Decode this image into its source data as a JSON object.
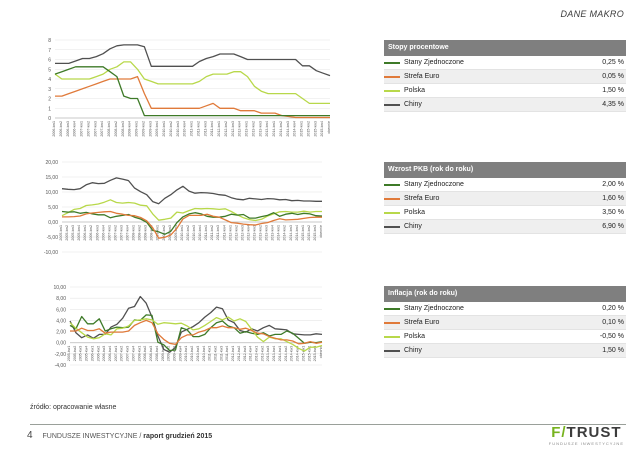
{
  "header": {
    "title": "DANE MAKRO"
  },
  "colors": {
    "us": "#3e7a28",
    "eu": "#e07a3a",
    "pl": "#b8d84a",
    "cn": "#505050"
  },
  "charts": [
    {
      "id": "rates",
      "yticks": [
        "0",
        "1",
        "2",
        "3",
        "4",
        "5",
        "6",
        "7",
        "8"
      ],
      "ymin": 0,
      "ymax": 8,
      "xlabels": [
        "2006-kw1",
        "2006-kw2",
        "2006-kw3",
        "2006-kw4",
        "2007-kw1",
        "2007-kw2",
        "2007-kw3",
        "2007-kw4",
        "2008-kw1",
        "2008-kw2",
        "2008-kw3",
        "2008-kw4",
        "2009-kw1",
        "2009-kw2",
        "2009-kw3",
        "2009-kw4",
        "2010-kw1",
        "2010-kw2",
        "2010-kw3",
        "2010-kw4",
        "2011-kw1",
        "2011-kw2",
        "2011-kw3",
        "2011-kw4",
        "2012-kw1",
        "2012-kw2",
        "2012-kw3",
        "2012-kw4",
        "2013-kw1",
        "2013-kw2",
        "2013-kw3",
        "2013-kw4",
        "2014-kw1",
        "2014-kw2",
        "2014-kw3",
        "2014-kw4",
        "2015-kw1",
        "2015-kw2",
        "2015-kw3",
        "2015-kw4",
        "obecnie"
      ],
      "series": [
        {
          "key": "cn",
          "values": [
            5.6,
            5.6,
            5.6,
            5.85,
            6.1,
            6.1,
            6.3,
            6.6,
            7.1,
            7.4,
            7.5,
            7.5,
            7.5,
            7.3,
            5.3,
            5.3,
            5.3,
            5.3,
            5.3,
            5.3,
            5.3,
            5.8,
            6.1,
            6.3,
            6.56,
            6.56,
            6.56,
            6.3,
            6.0,
            6.0,
            6.0,
            6.0,
            6.0,
            6.0,
            6.0,
            6.0,
            5.35,
            5.35,
            4.85,
            4.6,
            4.35
          ]
        },
        {
          "key": "pl",
          "values": [
            4.5,
            4.0,
            4.0,
            4.0,
            4.0,
            4.0,
            4.25,
            4.5,
            5.0,
            5.25,
            5.75,
            5.75,
            5.0,
            4.0,
            3.75,
            3.5,
            3.5,
            3.5,
            3.5,
            3.5,
            3.5,
            3.75,
            4.25,
            4.5,
            4.5,
            4.5,
            4.75,
            4.75,
            4.25,
            3.25,
            2.75,
            2.5,
            2.5,
            2.5,
            2.5,
            2.5,
            2.0,
            1.5,
            1.5,
            1.5,
            1.5
          ]
        },
        {
          "key": "eu",
          "values": [
            2.25,
            2.25,
            2.5,
            2.75,
            3.0,
            3.25,
            3.5,
            3.75,
            4.0,
            4.0,
            4.0,
            4.0,
            4.25,
            2.5,
            1.0,
            1.0,
            1.0,
            1.0,
            1.0,
            1.0,
            1.0,
            1.0,
            1.25,
            1.5,
            1.0,
            1.0,
            1.0,
            0.75,
            0.75,
            0.75,
            0.5,
            0.5,
            0.5,
            0.25,
            0.15,
            0.05,
            0.05,
            0.05,
            0.05,
            0.05,
            0.05
          ]
        },
        {
          "key": "us",
          "values": [
            4.5,
            4.75,
            5.0,
            5.25,
            5.25,
            5.25,
            5.25,
            5.25,
            4.75,
            4.25,
            2.25,
            2.0,
            2.0,
            0.25,
            0.25,
            0.25,
            0.25,
            0.25,
            0.25,
            0.25,
            0.25,
            0.25,
            0.25,
            0.25,
            0.25,
            0.25,
            0.25,
            0.25,
            0.25,
            0.25,
            0.25,
            0.25,
            0.25,
            0.25,
            0.25,
            0.25,
            0.25,
            0.25,
            0.25,
            0.25,
            0.25
          ]
        }
      ],
      "legend": {
        "title": "Stopy procentowe",
        "rows": [
          {
            "key": "us",
            "name": "Stany Zjednoczone",
            "value": "0,25 %"
          },
          {
            "key": "eu",
            "name": "Strefa Euro",
            "value": "0,05 %"
          },
          {
            "key": "pl",
            "name": "Polska",
            "value": "1,50 %"
          },
          {
            "key": "cn",
            "name": "Chiny",
            "value": "4,35 %"
          }
        ]
      }
    },
    {
      "id": "gdp",
      "yticks": [
        "-10,00",
        "-5,00",
        "0,00",
        "5,00",
        "10,00",
        "15,00",
        "20,00"
      ],
      "ymin": -10,
      "ymax": 20,
      "xlabels": [
        "2005-kw1",
        "2005-kw2",
        "2005-kw3",
        "2005-kw4",
        "2006-kw1",
        "2006-kw2",
        "2006-kw3",
        "2006-kw4",
        "2007-kw1",
        "2007-kw2",
        "2007-kw3",
        "2007-kw4",
        "2008-kw1",
        "2008-kw2",
        "2008-kw3",
        "2008-kw4",
        "2009-kw1",
        "2009-kw2",
        "2009-kw3",
        "2009-kw4",
        "2010-kw1",
        "2010-kw2",
        "2010-kw3",
        "2010-kw4",
        "2011-kw1",
        "2011-kw2",
        "2011-kw3",
        "2011-kw4",
        "2012-kw1",
        "2012-kw2",
        "2012-kw3",
        "2012-kw4",
        "2013-kw1",
        "2013-kw2",
        "2013-kw3",
        "2013-kw4",
        "2014-kw1",
        "2014-kw2",
        "2014-kw3",
        "2014-kw4",
        "2015-kw1",
        "2015-kw2",
        "2015-kw3",
        "obecnie"
      ],
      "series": [
        {
          "key": "cn",
          "values": [
            11.1,
            10.9,
            10.8,
            11.1,
            12.4,
            13.1,
            12.8,
            12.9,
            13.9,
            14.7,
            14.3,
            13.8,
            11.3,
            10.1,
            9.1,
            6.8,
            6.1,
            7.9,
            9.1,
            10.7,
            11.9,
            10.3,
            9.6,
            9.8,
            9.7,
            9.5,
            9.1,
            8.9,
            8.1,
            7.6,
            7.4,
            7.9,
            7.7,
            7.5,
            7.8,
            7.7,
            7.4,
            7.5,
            7.1,
            7.2,
            7.0,
            7.0,
            6.9,
            6.9
          ]
        },
        {
          "key": "pl",
          "values": [
            2.1,
            3.1,
            4.2,
            4.5,
            5.5,
            5.7,
            6.0,
            6.6,
            7.4,
            6.5,
            6.3,
            6.5,
            6.3,
            5.6,
            5.4,
            2.7,
            0.6,
            0.9,
            1.3,
            3.3,
            3.0,
            3.8,
            4.5,
            4.4,
            4.5,
            4.4,
            4.2,
            4.4,
            3.5,
            2.4,
            1.4,
            0.8,
            0.5,
            0.9,
            2.0,
            2.7,
            3.4,
            3.5,
            3.3,
            3.3,
            3.6,
            3.3,
            3.5,
            3.5
          ]
        },
        {
          "key": "us",
          "values": [
            3.5,
            3.3,
            3.4,
            2.9,
            3.2,
            2.7,
            2.4,
            2.4,
            1.4,
            1.9,
            2.2,
            2.5,
            1.6,
            1.0,
            -0.1,
            -2.8,
            -3.3,
            -4.1,
            -3.1,
            -0.2,
            1.7,
            2.7,
            3.1,
            2.7,
            1.9,
            1.6,
            1.6,
            1.9,
            2.6,
            2.3,
            2.5,
            1.3,
            1.3,
            1.8,
            2.2,
            3.1,
            1.9,
            2.6,
            2.9,
            2.5,
            2.9,
            2.7,
            2.1,
            2.0
          ]
        },
        {
          "key": "eu",
          "values": [
            1.7,
            1.7,
            1.8,
            2.0,
            2.7,
            3.0,
            3.2,
            3.4,
            3.5,
            2.9,
            2.6,
            2.2,
            2.1,
            1.5,
            0.4,
            -1.9,
            -5.4,
            -5.1,
            -4.3,
            -2.1,
            1.0,
            2.2,
            2.2,
            2.2,
            2.6,
            1.9,
            1.6,
            0.7,
            -0.2,
            -0.4,
            -0.7,
            -0.9,
            -1.0,
            -0.5,
            -0.2,
            0.5,
            1.1,
            0.7,
            0.8,
            0.9,
            1.2,
            1.5,
            1.6,
            1.6
          ]
        }
      ],
      "legend": {
        "title": "Wzrost PKB (rok do roku)",
        "rows": [
          {
            "key": "us",
            "name": "Stany Zjednoczone",
            "value": "2,00 %"
          },
          {
            "key": "eu",
            "name": "Strefa Euro",
            "value": "1,60 %"
          },
          {
            "key": "pl",
            "name": "Polska",
            "value": "3,50 %"
          },
          {
            "key": "cn",
            "name": "Chiny",
            "value": "6,90 %"
          }
        ]
      }
    },
    {
      "id": "inflation",
      "yticks": [
        "-4,00",
        "-2,00",
        "0,00",
        "2,00",
        "4,00",
        "6,00",
        "8,00",
        "10,00"
      ],
      "ymin": -4,
      "ymax": 10,
      "xlabels": [
        "2005-kw1",
        "2005-kw2",
        "2005-kw3",
        "2005-kw4",
        "2006-kw1",
        "2006-kw2",
        "2006-kw3",
        "2006-kw4",
        "2007-kw1",
        "2007-kw2",
        "2007-kw3",
        "2007-kw4",
        "2008-kw1",
        "2008-kw2",
        "2008-kw3",
        "2008-kw4",
        "2009-kw1",
        "2009-kw2",
        "2009-kw3",
        "2009-kw4",
        "2010-kw1",
        "2010-kw2",
        "2010-kw3",
        "2010-kw4",
        "2011-kw1",
        "2011-kw2",
        "2011-kw3",
        "2011-kw4",
        "2012-kw1",
        "2012-kw2",
        "2012-kw3",
        "2012-kw4",
        "2013-kw1",
        "2013-kw2",
        "2013-kw3",
        "2013-kw4",
        "2014-kw1",
        "2014-kw2",
        "2014-kw3",
        "2014-kw4",
        "2015-kw1",
        "2015-kw2",
        "2015-kw3",
        "obecnie"
      ],
      "series": [
        {
          "key": "cn",
          "values": [
            3.9,
            1.8,
            0.9,
            1.4,
            0.8,
            1.5,
            1.5,
            2.8,
            3.3,
            4.4,
            6.2,
            6.5,
            8.3,
            7.1,
            4.6,
            1.2,
            -1.2,
            -1.7,
            -0.8,
            1.9,
            2.4,
            2.9,
            3.6,
            4.6,
            5.4,
            6.4,
            6.1,
            4.1,
            3.6,
            2.2,
            1.9,
            2.5,
            2.1,
            2.7,
            3.1,
            2.5,
            2.4,
            2.3,
            1.6,
            1.5,
            1.4,
            1.4,
            1.6,
            1.5
          ]
        },
        {
          "key": "us",
          "values": [
            3.1,
            2.5,
            4.7,
            3.4,
            3.4,
            4.3,
            2.1,
            2.5,
            2.8,
            2.7,
            2.8,
            4.1,
            4.0,
            5.0,
            4.9,
            0.1,
            -0.4,
            -1.4,
            -1.3,
            2.7,
            2.3,
            1.1,
            1.1,
            1.5,
            2.7,
            3.6,
            3.9,
            3.0,
            2.7,
            1.7,
            2.0,
            1.7,
            1.5,
            1.8,
            1.2,
            1.5,
            1.5,
            2.1,
            1.7,
            0.8,
            -0.1,
            0.1,
            0.0,
            0.2
          ]
        },
        {
          "key": "pl",
          "values": [
            3.6,
            2.6,
            1.8,
            1.0,
            0.7,
            0.9,
            1.6,
            1.4,
            2.5,
            2.6,
            3.0,
            4.0,
            4.1,
            4.3,
            4.1,
            3.3,
            3.6,
            3.5,
            3.4,
            3.5,
            3.0,
            2.3,
            2.5,
            3.1,
            3.8,
            4.5,
            4.1,
            4.6,
            3.9,
            4.3,
            3.8,
            2.4,
            1.0,
            0.2,
            1.0,
            0.7,
            0.7,
            0.2,
            -0.3,
            -1.0,
            -1.5,
            -0.8,
            -0.8,
            -0.5
          ]
        },
        {
          "key": "eu",
          "values": [
            2.1,
            2.1,
            2.6,
            2.2,
            2.2,
            2.5,
            1.7,
            1.9,
            1.9,
            1.9,
            2.1,
            3.1,
            3.6,
            4.0,
            3.6,
            1.6,
            0.6,
            -0.1,
            -0.3,
            0.9,
            1.4,
            1.4,
            1.9,
            2.2,
            2.7,
            2.7,
            3.0,
            2.7,
            2.7,
            2.4,
            2.6,
            2.2,
            1.7,
            1.6,
            1.1,
            0.8,
            0.5,
            0.5,
            0.3,
            -0.2,
            -0.1,
            0.2,
            -0.1,
            0.1
          ]
        }
      ],
      "legend": {
        "title": "Inflacja (rok do roku)",
        "rows": [
          {
            "key": "us",
            "name": "Stany Zjednoczone",
            "value": "0,20 %"
          },
          {
            "key": "eu",
            "name": "Strefa Euro",
            "value": "0,10 %"
          },
          {
            "key": "pl",
            "name": "Polska",
            "value": "-0,50 %"
          },
          {
            "key": "cn",
            "name": "Chiny",
            "value": "1,50 %"
          }
        ]
      }
    }
  ],
  "source": "źródło: opracowanie własne",
  "footer": {
    "page": "4",
    "section": "FUNDUSZE INWESTYCYJNE",
    "separator": "/",
    "report": "raport grudzień 2015"
  },
  "logo": {
    "brand_a": "F/",
    "brand_b": "TRUST",
    "tagline": "FUNDUSZE INWESTYCYJNE"
  }
}
